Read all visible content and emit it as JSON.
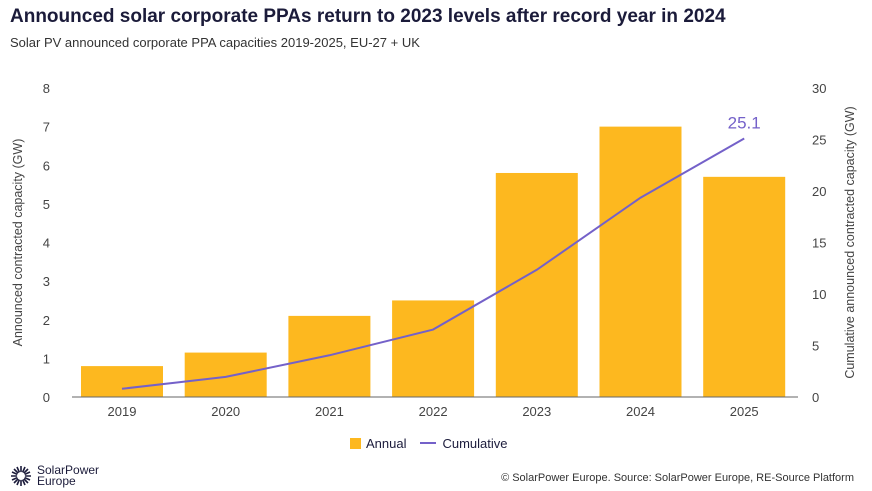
{
  "title": "Announced solar corporate PPAs return to 2023 levels after record year in 2024",
  "subtitle": "Solar PV announced corporate PPA capacities 2019-2025, EU-27 + UK",
  "source": "© SolarPower Europe. Source: SolarPower Europe, RE-Source Platform",
  "logo_text": "SolarPower Europe",
  "chart_data": {
    "type": "bar",
    "categories": [
      "2019",
      "2020",
      "2021",
      "2022",
      "2023",
      "2024",
      "2025"
    ],
    "series": [
      {
        "name": "Annual",
        "type": "bar",
        "axis": "left",
        "color": "#fdb81f",
        "values": [
          0.8,
          1.15,
          2.1,
          2.5,
          5.8,
          7.0,
          5.7
        ]
      },
      {
        "name": "Cumulative",
        "type": "line",
        "axis": "right",
        "color": "#7461c9",
        "values": [
          0.8,
          1.95,
          4.05,
          6.55,
          12.35,
          19.35,
          25.1
        ]
      }
    ],
    "annotation": "25.1",
    "ylabel": "Announced contracted capacity (GW)",
    "y2label": "Cumulative announced contracted capacity (GW)",
    "ylim": [
      0,
      8
    ],
    "y2lim": [
      0,
      30
    ],
    "yticks": [
      0,
      1,
      2,
      3,
      4,
      5,
      6,
      7,
      8
    ],
    "y2ticks": [
      0,
      5,
      10,
      15,
      20,
      25,
      30
    ],
    "grid": false,
    "legend": "bottom"
  }
}
